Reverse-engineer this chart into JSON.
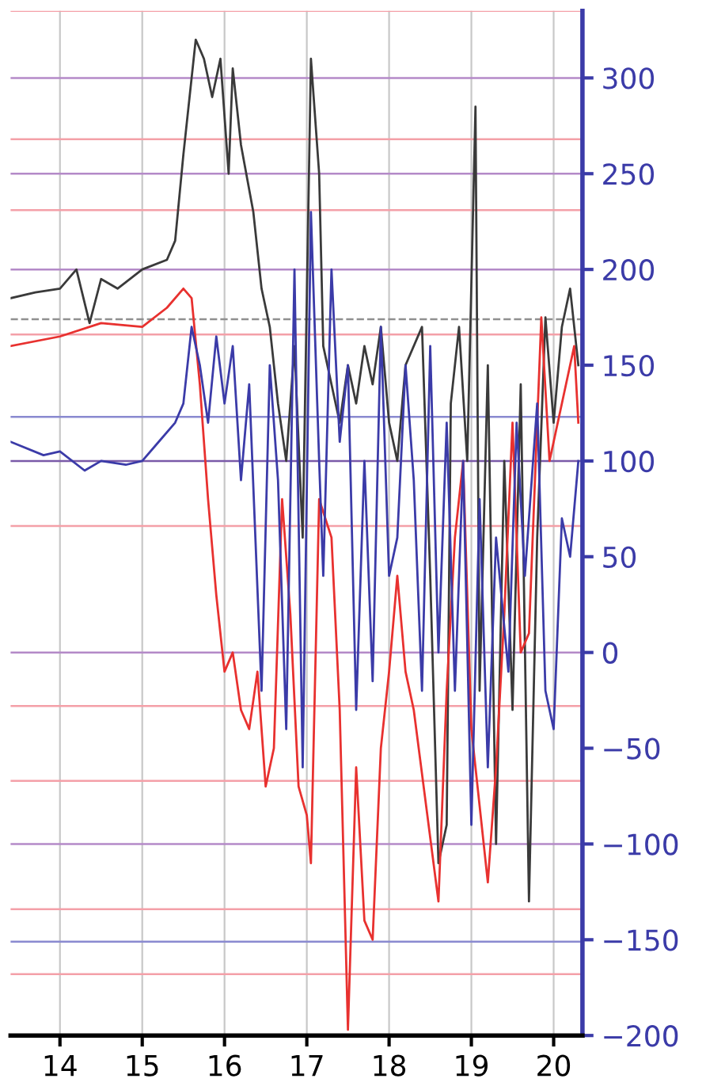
{
  "chart_data": {
    "type": "line",
    "xlim": [
      13.4,
      20.35
    ],
    "xticks": [
      14,
      15,
      16,
      17,
      18,
      19,
      20
    ],
    "ylim": [
      -200,
      335
    ],
    "yticks": [
      {
        "value": -200,
        "label": "−200"
      },
      {
        "value": -150,
        "label": "−150"
      },
      {
        "value": -100,
        "label": "−100"
      },
      {
        "value": -50,
        "label": "−50"
      },
      0,
      50,
      100,
      150,
      200,
      250,
      300
    ],
    "grid": "x",
    "line_style": "solid",
    "marker": "none",
    "series": [
      {
        "color": "#3a3a3a",
        "x": [
          13.4,
          13.7,
          14.0,
          14.2,
          14.36,
          14.5,
          14.7,
          15.0,
          15.3,
          15.4,
          15.5,
          15.65,
          15.75,
          15.85,
          15.95,
          16.05,
          16.1,
          16.2,
          16.35,
          16.45,
          16.55,
          16.65,
          16.75,
          16.85,
          16.95,
          17.05,
          17.15,
          17.2,
          17.3,
          17.4,
          17.5,
          17.6,
          17.7,
          17.8,
          17.9,
          18.0,
          18.1,
          18.2,
          18.4,
          18.5,
          18.6,
          18.7,
          18.75,
          18.85,
          18.95,
          19.05,
          19.1,
          19.2,
          19.3,
          19.4,
          19.5,
          19.6,
          19.7,
          19.8,
          19.9,
          20.0,
          20.1,
          20.2,
          20.3
        ],
        "values": [
          185,
          188,
          190,
          200,
          172,
          195,
          190,
          200,
          205,
          215,
          260,
          320,
          310,
          290,
          310,
          250,
          305,
          265,
          230,
          190,
          170,
          130,
          100,
          160,
          60,
          310,
          250,
          160,
          140,
          120,
          150,
          130,
          160,
          140,
          170,
          120,
          100,
          150,
          170,
          40,
          -110,
          -90,
          130,
          170,
          100,
          285,
          -20,
          150,
          -100,
          100,
          -30,
          140,
          -130,
          60,
          175,
          120,
          170,
          190,
          150
        ]
      },
      {
        "color": "#e8312f",
        "x": [
          13.4,
          14.0,
          14.5,
          15.0,
          15.3,
          15.5,
          15.6,
          15.7,
          15.8,
          15.9,
          16.0,
          16.1,
          16.2,
          16.3,
          16.4,
          16.5,
          16.6,
          16.7,
          16.8,
          16.9,
          17.0,
          17.05,
          17.15,
          17.3,
          17.4,
          17.5,
          17.6,
          17.7,
          17.8,
          17.9,
          18.0,
          18.1,
          18.2,
          18.3,
          18.45,
          18.6,
          18.7,
          18.8,
          18.9,
          19.0,
          19.2,
          19.3,
          19.4,
          19.5,
          19.6,
          19.7,
          19.85,
          19.95,
          20.05,
          20.15,
          20.25,
          20.3
        ],
        "values": [
          160,
          165,
          172,
          170,
          180,
          190,
          185,
          140,
          80,
          30,
          -10,
          0,
          -30,
          -40,
          -10,
          -70,
          -50,
          80,
          20,
          -70,
          -85,
          -110,
          80,
          60,
          -30,
          -197,
          -60,
          -140,
          -150,
          -50,
          -10,
          40,
          -10,
          -30,
          -80,
          -130,
          -20,
          60,
          100,
          -40,
          -120,
          -60,
          20,
          120,
          0,
          10,
          175,
          100,
          120,
          140,
          160,
          120
        ]
      },
      {
        "color": "#3b3ba8",
        "x": [
          13.4,
          13.8,
          14.0,
          14.3,
          14.5,
          14.8,
          15.0,
          15.2,
          15.4,
          15.5,
          15.6,
          15.7,
          15.8,
          15.9,
          16.0,
          16.1,
          16.2,
          16.3,
          16.45,
          16.55,
          16.65,
          16.75,
          16.85,
          16.95,
          17.05,
          17.15,
          17.2,
          17.3,
          17.4,
          17.5,
          17.6,
          17.7,
          17.8,
          17.9,
          18.0,
          18.1,
          18.2,
          18.3,
          18.4,
          18.5,
          18.6,
          18.7,
          18.8,
          18.9,
          19.0,
          19.1,
          19.2,
          19.3,
          19.45,
          19.55,
          19.65,
          19.8,
          19.9,
          20.0,
          20.1,
          20.2,
          20.3
        ],
        "values": [
          110,
          103,
          105,
          95,
          100,
          98,
          100,
          110,
          120,
          130,
          170,
          150,
          120,
          165,
          130,
          160,
          90,
          140,
          -20,
          150,
          90,
          -40,
          200,
          -60,
          230,
          100,
          40,
          200,
          110,
          150,
          -30,
          100,
          -15,
          170,
          40,
          60,
          150,
          90,
          -20,
          160,
          0,
          120,
          -20,
          100,
          -90,
          80,
          -60,
          60,
          -10,
          120,
          40,
          130,
          -20,
          -40,
          70,
          50,
          100
        ]
      }
    ],
    "ref_lines": [
      {
        "axis": "y",
        "value": 335,
        "color": "#f4a0a8"
      },
      {
        "axis": "y",
        "value": 300,
        "color": "#b48ac8"
      },
      {
        "axis": "y",
        "value": 268,
        "color": "#f4a0a8"
      },
      {
        "axis": "y",
        "value": 250,
        "color": "#b48ac8"
      },
      {
        "axis": "y",
        "value": 231,
        "color": "#f4a0a8"
      },
      {
        "axis": "y",
        "value": 200,
        "color": "#b48ac8"
      },
      {
        "axis": "y",
        "value": 174,
        "color": "#909090",
        "line_style": "dashed"
      },
      {
        "axis": "y",
        "value": 166,
        "color": "#f4a0a8"
      },
      {
        "axis": "y",
        "value": 123,
        "color": "#8a8ad0"
      },
      {
        "axis": "y",
        "value": 100,
        "color": "#7a5aa8"
      },
      {
        "axis": "y",
        "value": 66,
        "color": "#f4a0a8"
      },
      {
        "axis": "y",
        "value": 0,
        "color": "#b48ac8"
      },
      {
        "axis": "y",
        "value": -28,
        "color": "#f4a0a8"
      },
      {
        "axis": "y",
        "value": -67,
        "color": "#f4a0a8"
      },
      {
        "axis": "y",
        "value": -100,
        "color": "#b48ac8"
      },
      {
        "axis": "y",
        "value": -134,
        "color": "#f4a0a8"
      },
      {
        "axis": "y",
        "value": -151,
        "color": "#8a8ad0"
      },
      {
        "axis": "y",
        "value": -168,
        "color": "#f4a0a8"
      }
    ]
  }
}
